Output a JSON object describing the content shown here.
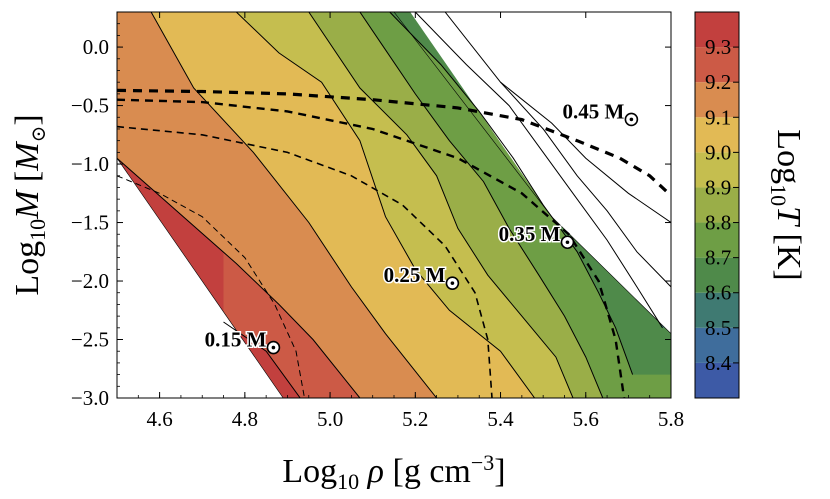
{
  "chart_data": {
    "type": "heatmap",
    "title": "",
    "xlabel": "Log10 ρ [g cm^-3]",
    "ylabel": "Log10 M [M⊙]",
    "colorbar_label": "Log10 T [K]",
    "xlim": [
      4.5,
      5.8
    ],
    "ylim": [
      -3.0,
      0.3
    ],
    "x_ticks": [
      4.6,
      4.8,
      5.0,
      5.2,
      5.4,
      5.6,
      5.8
    ],
    "x_tick_labels": [
      "4.6",
      "4.8",
      "5.0",
      "5.2",
      "5.4",
      "5.6",
      "5.8"
    ],
    "y_ticks": [
      0.0,
      -0.5,
      -1.0,
      -1.5,
      -2.0,
      -2.5,
      -3.0
    ],
    "y_tick_labels": [
      "0.0",
      "−0.5",
      "−1.0",
      "−1.5",
      "−2.0",
      "−2.5",
      "−3.0"
    ],
    "color_levels": [
      {
        "range": [
          8.3,
          8.4
        ],
        "color": "#3d5aa6"
      },
      {
        "range": [
          8.4,
          8.5
        ],
        "color": "#3f6d9c"
      },
      {
        "range": [
          8.5,
          8.6
        ],
        "color": "#3f7a72"
      },
      {
        "range": [
          8.6,
          8.7
        ],
        "color": "#4f8a4a"
      },
      {
        "range": [
          8.7,
          8.8
        ],
        "color": "#6e9e45"
      },
      {
        "range": [
          8.8,
          8.9
        ],
        "color": "#9aae48"
      },
      {
        "range": [
          8.9,
          9.0
        ],
        "color": "#c5be4f"
      },
      {
        "range": [
          9.0,
          9.1
        ],
        "color": "#e2ba55"
      },
      {
        "range": [
          9.1,
          9.2
        ],
        "color": "#d98c50"
      },
      {
        "range": [
          9.2,
          9.3
        ],
        "color": "#cc5a46"
      },
      {
        "range": [
          9.3,
          9.4
        ],
        "color": "#c2403e"
      }
    ],
    "colorbar_ticks": [
      "8.4",
      "8.5",
      "8.6",
      "8.7",
      "8.8",
      "8.9",
      "9.0",
      "9.1",
      "9.2",
      "9.3"
    ],
    "band_boundaries": [
      {
        "level": 9.3,
        "points": [
          [
            4.75,
            -2.35
          ],
          [
            4.85,
            -2.6
          ],
          [
            4.93,
            -3.0
          ]
        ]
      },
      {
        "level": 9.2,
        "points": [
          [
            4.5,
            -0.95
          ],
          [
            4.78,
            -1.85
          ],
          [
            4.88,
            -2.2
          ],
          [
            4.96,
            -2.5
          ],
          [
            5.07,
            -3.0
          ]
        ]
      },
      {
        "level": 9.1,
        "points": [
          [
            4.58,
            0.3
          ],
          [
            4.68,
            -0.35
          ],
          [
            4.82,
            -0.9
          ],
          [
            4.95,
            -1.5
          ],
          [
            5.05,
            -2.05
          ],
          [
            5.13,
            -2.45
          ],
          [
            5.25,
            -3.0
          ]
        ]
      },
      {
        "level": 9.0,
        "points": [
          [
            4.78,
            0.3
          ],
          [
            4.88,
            -0.05
          ],
          [
            4.98,
            -0.3
          ],
          [
            5.07,
            -0.8
          ],
          [
            5.13,
            -1.45
          ],
          [
            5.2,
            -1.9
          ],
          [
            5.28,
            -2.25
          ],
          [
            5.4,
            -2.6
          ],
          [
            5.48,
            -3.0
          ]
        ]
      },
      {
        "level": 8.9,
        "points": [
          [
            4.95,
            0.3
          ],
          [
            5.07,
            -0.35
          ],
          [
            5.18,
            -0.75
          ],
          [
            5.25,
            -1.1
          ],
          [
            5.3,
            -1.55
          ],
          [
            5.37,
            -1.95
          ],
          [
            5.45,
            -2.3
          ],
          [
            5.53,
            -2.65
          ],
          [
            5.57,
            -3.0
          ]
        ]
      },
      {
        "level": 8.8,
        "points": [
          [
            5.07,
            0.3
          ],
          [
            5.2,
            -0.4
          ],
          [
            5.28,
            -0.8
          ],
          [
            5.36,
            -1.15
          ],
          [
            5.42,
            -1.55
          ],
          [
            5.49,
            -1.95
          ],
          [
            5.55,
            -2.3
          ],
          [
            5.6,
            -2.65
          ],
          [
            5.64,
            -3.0
          ]
        ]
      },
      {
        "level": 8.7,
        "points": [
          [
            5.14,
            0.3
          ],
          [
            5.26,
            -0.15
          ],
          [
            5.35,
            -0.55
          ],
          [
            5.43,
            -0.95
          ],
          [
            5.5,
            -1.35
          ],
          [
            5.58,
            -1.75
          ],
          [
            5.63,
            -2.1
          ],
          [
            5.67,
            -2.4
          ],
          [
            5.71,
            -2.8
          ]
        ]
      },
      {
        "level": 8.6,
        "points": [
          [
            5.2,
            0.3
          ],
          [
            5.32,
            -0.15
          ],
          [
            5.42,
            -0.5
          ],
          [
            5.5,
            -0.9
          ],
          [
            5.58,
            -1.3
          ],
          [
            5.65,
            -1.65
          ],
          [
            5.72,
            -2.05
          ],
          [
            5.78,
            -2.4
          ]
        ]
      },
      {
        "level": 8.5,
        "points": [
          [
            5.27,
            0.3
          ],
          [
            5.4,
            -0.3
          ],
          [
            5.5,
            -0.7
          ],
          [
            5.58,
            -1.1
          ],
          [
            5.65,
            -1.4
          ],
          [
            5.72,
            -1.75
          ],
          [
            5.8,
            -2.05
          ]
        ]
      },
      {
        "level": 8.4,
        "points": [
          [
            5.4,
            -0.3
          ],
          [
            5.52,
            -0.65
          ],
          [
            5.6,
            -0.95
          ],
          [
            5.7,
            -1.25
          ],
          [
            5.8,
            -1.5
          ]
        ]
      }
    ],
    "data_region": [
      [
        4.5,
        0.3
      ],
      [
        4.5,
        -0.95
      ],
      [
        4.89,
        -3.0
      ],
      [
        5.8,
        -3.0
      ],
      [
        5.8,
        -2.45
      ],
      [
        5.52,
        -1.45
      ],
      [
        5.15,
        0.3
      ]
    ],
    "mass_curves": [
      {
        "label": "0.15 M⊙",
        "rho_at_M_min3": 4.93,
        "points": [
          [
            4.5,
            -1.1
          ],
          [
            4.6,
            -1.25
          ],
          [
            4.7,
            -1.45
          ],
          [
            4.8,
            -1.8
          ],
          [
            4.87,
            -2.2
          ],
          [
            4.92,
            -2.6
          ],
          [
            4.94,
            -3.0
          ]
        ]
      },
      {
        "label": "0.25 M⊙",
        "points": [
          [
            4.5,
            -0.68
          ],
          [
            4.7,
            -0.75
          ],
          [
            4.9,
            -0.9
          ],
          [
            5.05,
            -1.1
          ],
          [
            5.17,
            -1.35
          ],
          [
            5.27,
            -1.7
          ],
          [
            5.34,
            -2.1
          ],
          [
            5.37,
            -2.5
          ],
          [
            5.38,
            -3.0
          ]
        ]
      },
      {
        "label": "0.35 M⊙",
        "points": [
          [
            4.5,
            -0.45
          ],
          [
            4.7,
            -0.47
          ],
          [
            4.9,
            -0.55
          ],
          [
            5.1,
            -0.7
          ],
          [
            5.3,
            -0.95
          ],
          [
            5.45,
            -1.25
          ],
          [
            5.56,
            -1.6
          ],
          [
            5.63,
            -2.0
          ],
          [
            5.67,
            -2.5
          ],
          [
            5.69,
            -3.0
          ]
        ]
      },
      {
        "label": "0.45 M⊙",
        "points": [
          [
            4.5,
            -0.37
          ],
          [
            4.7,
            -0.38
          ],
          [
            4.9,
            -0.4
          ],
          [
            5.1,
            -0.45
          ],
          [
            5.3,
            -0.52
          ],
          [
            5.45,
            -0.62
          ],
          [
            5.58,
            -0.8
          ],
          [
            5.68,
            -0.95
          ],
          [
            5.75,
            -1.1
          ],
          [
            5.8,
            -1.27
          ]
        ]
      }
    ],
    "annotations": [
      {
        "text": "0.15 M",
        "x": 4.86,
        "y": -2.5
      },
      {
        "text": "0.25 M",
        "x": 5.28,
        "y": -1.95
      },
      {
        "text": "0.35 M",
        "x": 5.55,
        "y": -1.6
      },
      {
        "text": "0.45 M",
        "x": 5.7,
        "y": -0.55
      }
    ],
    "grid": false,
    "legend": "colorbar-right"
  }
}
